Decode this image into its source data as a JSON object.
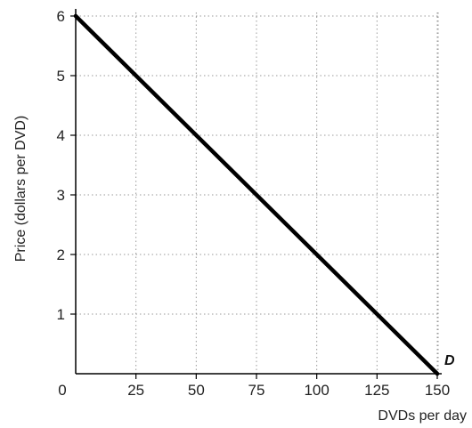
{
  "chart_data": {
    "type": "line",
    "xlabel": "DVDs per day",
    "ylabel": "Price (dollars per DVD)",
    "xlim": [
      0,
      160
    ],
    "ylim": [
      0,
      6.2
    ],
    "x_ticks": [
      0,
      25,
      50,
      75,
      100,
      125,
      150
    ],
    "x_tick_labels": [
      "0",
      "25",
      "50",
      "75",
      "100",
      "125",
      "150"
    ],
    "y_ticks": [
      1,
      2,
      3,
      4,
      5,
      6
    ],
    "y_tick_labels": [
      "1",
      "2",
      "3",
      "4",
      "5",
      "6"
    ],
    "grid": true,
    "series": [
      {
        "name": "D",
        "x": [
          0,
          150
        ],
        "y": [
          6,
          0
        ]
      }
    ],
    "annotations": [
      {
        "text": "D",
        "x": 150,
        "y": 0
      }
    ]
  }
}
